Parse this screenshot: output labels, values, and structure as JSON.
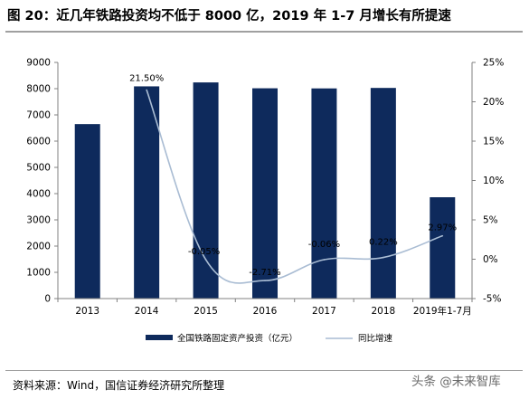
{
  "title": "图 20：近几年铁路投资均不低于 8000 亿，2019 年 1-7 月增长有所提速",
  "source": "资料来源：Wind，国信证券经济研究所整理",
  "watermark": "头条 @未来智库",
  "colors": {
    "bar": "#0e2a5c",
    "line": "#a9bcd3"
  },
  "chart_data": {
    "type": "bar",
    "categories": [
      "2013",
      "2014",
      "2015",
      "2016",
      "2017",
      "2018",
      "2019年1-7月"
    ],
    "series": [
      {
        "name": "全国铁路固定资产投资（亿元）",
        "type": "bar",
        "axis": "left",
        "values": [
          6650,
          8088,
          8238,
          8015,
          8010,
          8028,
          3862
        ]
      },
      {
        "name": "同比增速",
        "type": "line",
        "axis": "right",
        "values": [
          null,
          21.5,
          -0.05,
          -2.71,
          -0.06,
          0.22,
          2.97
        ],
        "labels": [
          "",
          "21.50%",
          "-0.05%",
          "-2.71%",
          "-0.06%",
          "0.22%",
          "2.97%"
        ]
      }
    ],
    "y_left": {
      "min": 0,
      "max": 9000,
      "step": 1000,
      "ticks": [
        "0",
        "1000",
        "2000",
        "3000",
        "4000",
        "5000",
        "6000",
        "7000",
        "8000",
        "9000"
      ]
    },
    "y_right": {
      "min": -5,
      "max": 25,
      "step": 5,
      "ticks": [
        "-5%",
        "0%",
        "5%",
        "10%",
        "15%",
        "20%",
        "25%"
      ]
    },
    "legend": "bottom",
    "grid": false
  }
}
